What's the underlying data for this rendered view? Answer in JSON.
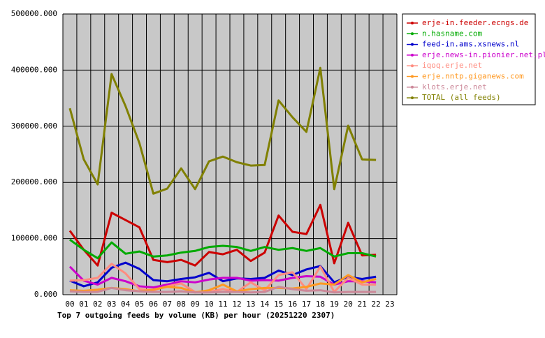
{
  "chart_data": {
    "type": "line",
    "title": "Top 7 outgoing feeds by volume (KB) per hour (20251220 2307)",
    "categories": [
      "00",
      "01",
      "02",
      "03",
      "04",
      "05",
      "06",
      "07",
      "08",
      "09",
      "10",
      "11",
      "12",
      "13",
      "14",
      "15",
      "16",
      "17",
      "18",
      "19",
      "20",
      "21",
      "22",
      "23"
    ],
    "ylim": [
      0,
      500000
    ],
    "yticks": [
      {
        "value": 0,
        "label": "0.000"
      },
      {
        "value": 100000,
        "label": "100000.000"
      },
      {
        "value": 200000,
        "label": "200000.000"
      },
      {
        "value": 300000,
        "label": "300000.000"
      },
      {
        "value": 400000,
        "label": "400000.000"
      },
      {
        "value": 500000,
        "label": "500000.000"
      }
    ],
    "grid": true,
    "legend": "right",
    "series": [
      {
        "name": "erje-in.feeder.ecngs.de",
        "color": "#cc0000",
        "values": [
          114000,
          80000,
          52000,
          146000,
          133000,
          120000,
          62000,
          58000,
          62000,
          52000,
          76000,
          72000,
          80000,
          60000,
          75000,
          141000,
          112000,
          108000,
          160000,
          56000,
          128000,
          70000,
          71000,
          null
        ]
      },
      {
        "name": "n.hasname.com",
        "color": "#00aa00",
        "values": [
          98000,
          80000,
          65000,
          93000,
          73000,
          77000,
          68000,
          70000,
          75000,
          78000,
          85000,
          87000,
          85000,
          78000,
          85000,
          80000,
          83000,
          78000,
          83000,
          68000,
          74000,
          74000,
          68000,
          null
        ]
      },
      {
        "name": "feed-in.ams.xsnews.nl",
        "color": "#0000cc",
        "values": [
          25000,
          15000,
          22000,
          48000,
          57000,
          46000,
          26000,
          24000,
          28000,
          31000,
          39000,
          24000,
          29000,
          28000,
          30000,
          43000,
          35000,
          45000,
          51000,
          22000,
          32000,
          28000,
          32000,
          null
        ]
      },
      {
        "name": "erje.news-in.pionier.net.pl",
        "color": "#cc00cc",
        "values": [
          50000,
          25000,
          18000,
          30000,
          24000,
          15000,
          13000,
          18000,
          24000,
          22000,
          27000,
          30000,
          30000,
          25000,
          26000,
          25000,
          30000,
          33000,
          32000,
          18000,
          24000,
          24000,
          22000,
          null
        ]
      },
      {
        "name": "iqoq.erje.net",
        "color": "#ff8c80",
        "values": [
          25000,
          26000,
          30000,
          55000,
          38000,
          10000,
          8000,
          15000,
          20000,
          5000,
          5000,
          10000,
          5000,
          22000,
          8000,
          35000,
          40000,
          10000,
          50000,
          5000,
          30000,
          18000,
          18000,
          null
        ]
      },
      {
        "name": "erje.nntp.giganews.com",
        "color": "#ff9922",
        "values": [
          8000,
          7000,
          9000,
          12000,
          10000,
          6000,
          9000,
          14000,
          12000,
          4000,
          8000,
          18000,
          6000,
          10000,
          12000,
          12000,
          11000,
          14000,
          20000,
          18000,
          35000,
          22000,
          28000,
          null
        ]
      },
      {
        "name": "klots.erje.net",
        "color": "#cc8899",
        "values": [
          6000,
          5000,
          5000,
          12000,
          8000,
          6000,
          5000,
          5000,
          6000,
          4000,
          4000,
          5000,
          5000,
          4000,
          5000,
          14000,
          10000,
          7000,
          8000,
          4000,
          5000,
          5000,
          5000,
          null
        ]
      },
      {
        "name": "TOTAL (all feeds)",
        "color": "#808000",
        "values": [
          332000,
          241000,
          196500,
          393000,
          336000,
          270000,
          180000,
          189000,
          225000,
          188000,
          237500,
          246000,
          236000,
          230000,
          231000,
          346000,
          316000,
          290000,
          404000,
          188000,
          301000,
          241000,
          240000,
          null
        ]
      }
    ]
  }
}
